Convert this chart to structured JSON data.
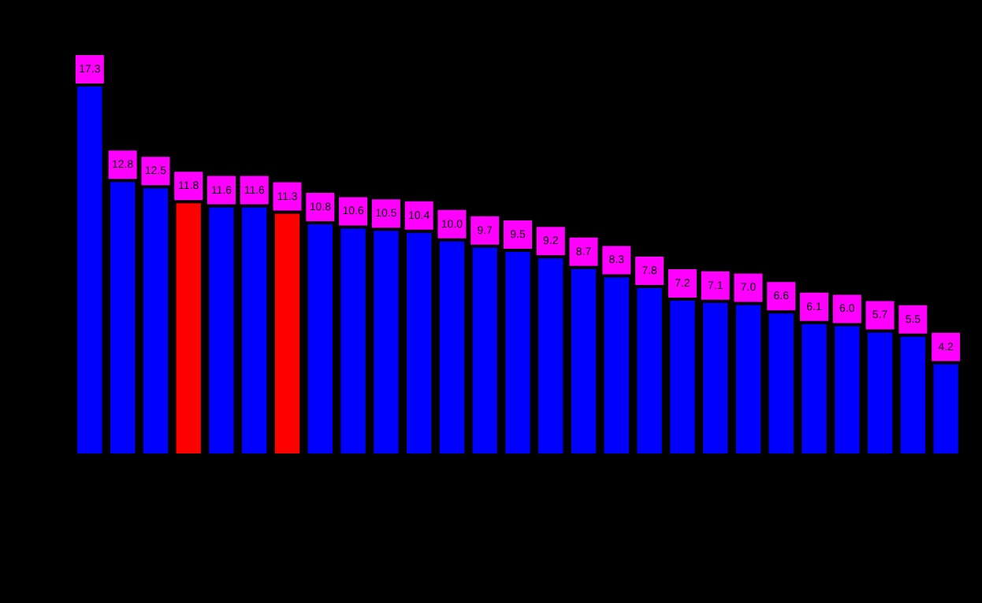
{
  "chart_data": {
    "type": "bar",
    "categories": [
      null,
      null,
      null,
      null,
      null,
      null,
      null,
      null,
      null,
      null,
      null,
      null,
      null,
      null,
      null,
      null,
      null,
      null,
      null,
      null,
      null,
      null,
      null,
      null,
      null,
      null,
      null
    ],
    "values": [
      17.3,
      12.8,
      12.5,
      11.8,
      11.6,
      11.6,
      11.3,
      10.8,
      10.6,
      10.5,
      10.4,
      10.0,
      9.7,
      9.5,
      9.2,
      8.7,
      8.3,
      7.8,
      7.2,
      7.1,
      7.0,
      6.6,
      6.1,
      6.0,
      5.7,
      5.5,
      4.2
    ],
    "colors": [
      "#0000ff",
      "#0000ff",
      "#0000ff",
      "#ff0000",
      "#0000ff",
      "#0000ff",
      "#ff0000",
      "#0000ff",
      "#0000ff",
      "#0000ff",
      "#0000ff",
      "#0000ff",
      "#0000ff",
      "#0000ff",
      "#0000ff",
      "#0000ff",
      "#0000ff",
      "#0000ff",
      "#0000ff",
      "#0000ff",
      "#0000ff",
      "#0000ff",
      "#0000ff",
      "#0000ff",
      "#0000ff",
      "#0000ff",
      "#0000ff"
    ],
    "value_labels": [
      "17.3",
      "12.8",
      "12.5",
      "11.8",
      "11.6",
      "11.6",
      "11.3",
      "10.8",
      "10.6",
      "10.5",
      "10.4",
      "10.0",
      "9.7",
      "9.5",
      "9.2",
      "8.7",
      "8.3",
      "7.8",
      "7.2",
      "7.1",
      "7.0",
      "6.6",
      "6.1",
      "6.0",
      "5.7",
      "5.5",
      "4.2"
    ]
  }
}
